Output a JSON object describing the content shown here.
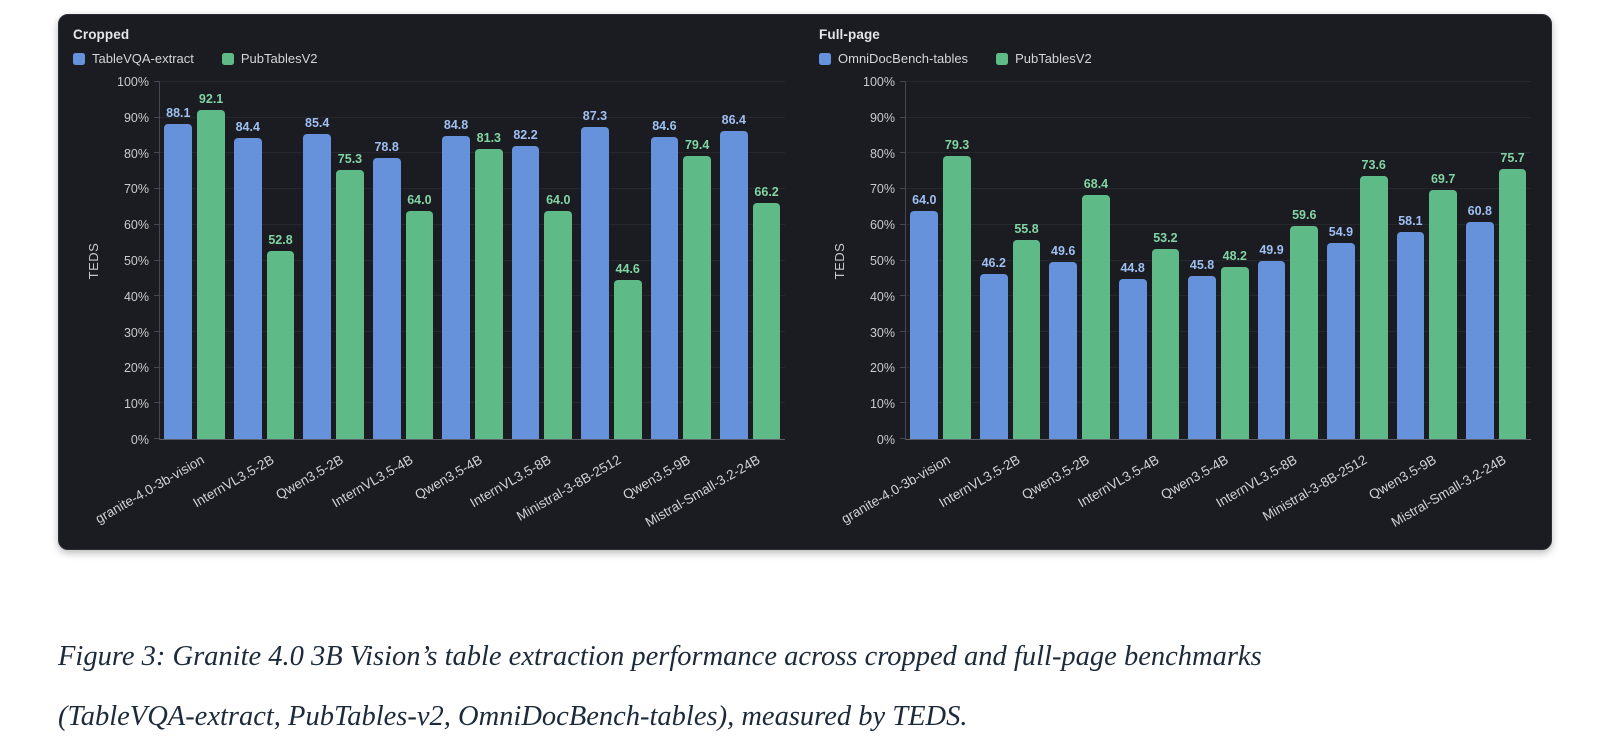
{
  "colors": {
    "panel_background": "#1a1c21",
    "bar_blue": "#6691DB",
    "bar_green": "#5EBA87",
    "value_label_blue": "#A0BFF2",
    "value_label_green": "#82D5A4",
    "caption_text": "#1c2a3a"
  },
  "chart_data": [
    {
      "type": "bar",
      "title": "Cropped",
      "categories": [
        "granite-4.0-3b-vision",
        "InternVL3.5-2B",
        "Qwen3.5-2B",
        "InternVL3.5-4B",
        "Qwen3.5-4B",
        "InternVL3.5-8B",
        "Ministral-3-8B-2512",
        "Qwen3.5-9B",
        "Mistral-Small-3.2-24B"
      ],
      "series": [
        {
          "name": "TableVQA-extract",
          "color": "#6691DB",
          "label_color": "#A0BFF2",
          "values": [
            88.1,
            84.4,
            85.4,
            78.8,
            84.8,
            82.2,
            87.3,
            84.6,
            86.4
          ]
        },
        {
          "name": "PubTablesV2",
          "color": "#5EBA87",
          "label_color": "#82D5A4",
          "values": [
            92.1,
            52.8,
            75.3,
            64.0,
            81.3,
            64.0,
            44.6,
            79.4,
            66.2
          ]
        }
      ],
      "xlabel": "",
      "ylabel": "TEDS",
      "ylim": [
        0,
        100
      ],
      "ytick_labels": [
        "0%",
        "10%",
        "20%",
        "30%",
        "40%",
        "50%",
        "60%",
        "70%",
        "80%",
        "90%",
        "100%"
      ],
      "grid": true,
      "legend_position": "top-left",
      "x_label_rotation": -30
    },
    {
      "type": "bar",
      "title": "Full-page",
      "categories": [
        "granite-4.0-3b-vision",
        "InternVL3.5-2B",
        "Qwen3.5-2B",
        "InternVL3.5-4B",
        "Qwen3.5-4B",
        "InternVL3.5-8B",
        "Ministral-3-8B-2512",
        "Qwen3.5-9B",
        "Mistral-Small-3.2-24B"
      ],
      "series": [
        {
          "name": "OmniDocBench-tables",
          "color": "#6691DB",
          "label_color": "#A0BFF2",
          "values": [
            64.0,
            46.2,
            49.6,
            44.8,
            45.8,
            49.9,
            54.9,
            58.1,
            60.8
          ]
        },
        {
          "name": "PubTablesV2",
          "color": "#5EBA87",
          "label_color": "#82D5A4",
          "values": [
            79.3,
            55.8,
            68.4,
            53.2,
            48.2,
            59.6,
            73.6,
            69.7,
            75.7
          ]
        }
      ],
      "xlabel": "",
      "ylabel": "TEDS",
      "ylim": [
        0,
        100
      ],
      "ytick_labels": [
        "0%",
        "10%",
        "20%",
        "30%",
        "40%",
        "50%",
        "60%",
        "70%",
        "80%",
        "90%",
        "100%"
      ],
      "grid": true,
      "legend_position": "top-left",
      "x_label_rotation": -30
    }
  ],
  "caption": {
    "line1": "Figure 3: Granite 4.0 3B Vision’s table extraction performance across cropped and full-page benchmarks",
    "line2": "(TableVQA-extract, PubTables-v2, OmniDocBench-tables), measured by TEDS."
  }
}
